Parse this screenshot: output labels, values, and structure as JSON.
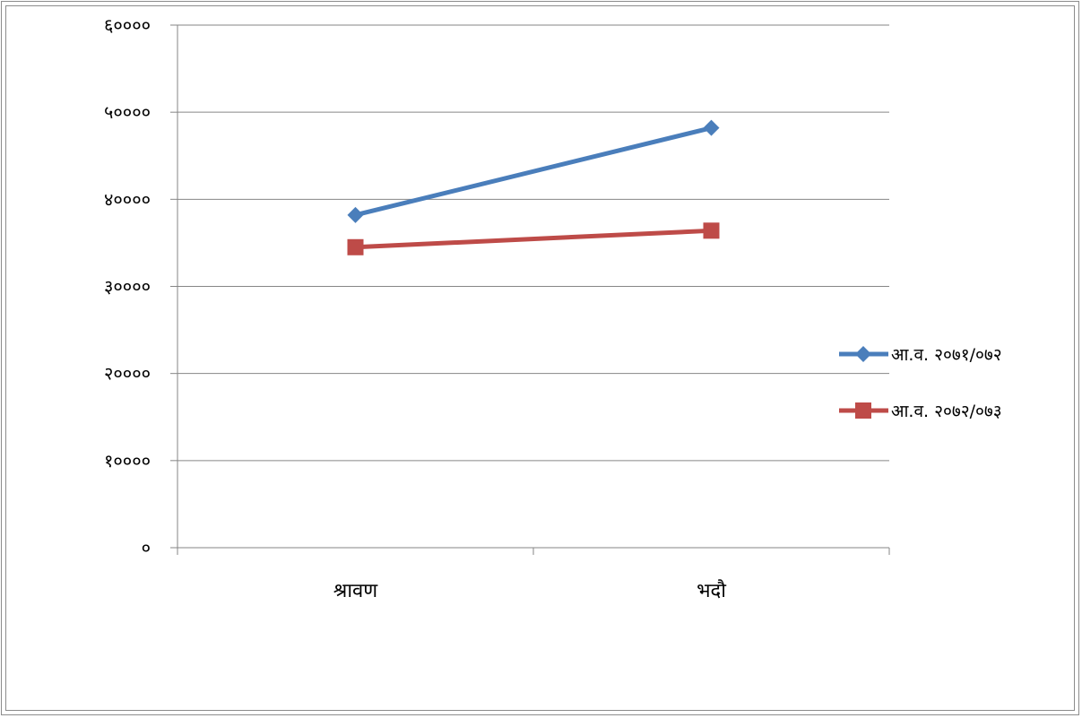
{
  "chart_data": {
    "type": "line",
    "categories": [
      "श्रावण",
      "भदौ"
    ],
    "series": [
      {
        "name": "आ.व. २०७१/०७२",
        "values": [
          38200,
          48200
        ],
        "color": "#4a7ebb",
        "marker": "diamond"
      },
      {
        "name": "आ.व. २०७२/०७३",
        "values": [
          34500,
          36400
        ],
        "color": "#be4b48",
        "marker": "square"
      }
    ],
    "ylim": [
      0,
      60000
    ],
    "yticks": [
      0,
      10000,
      20000,
      30000,
      40000,
      50000,
      60000
    ],
    "ytick_labels": [
      "०",
      "१००००",
      "२००००",
      "३००००",
      "४००००",
      "५००००",
      "६००००"
    ],
    "grid": true,
    "legend_position": "right",
    "title": "",
    "xlabel": "",
    "ylabel": ""
  }
}
